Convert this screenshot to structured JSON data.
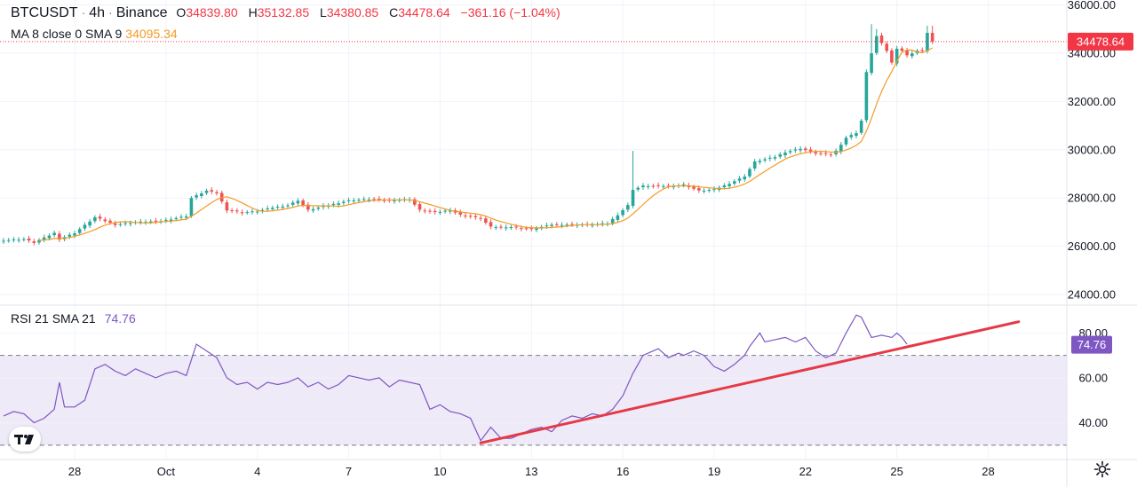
{
  "header": {
    "symbol": "BTCUSDT",
    "interval": "4h",
    "exchange": "Binance",
    "sep": "·",
    "o_label": "O",
    "o_value": "34839.80",
    "h_label": "H",
    "h_value": "35132.85",
    "l_label": "L",
    "l_value": "34380.85",
    "c_label": "C",
    "c_value": "34478.64",
    "change": "−361.16 (−1.04%)"
  },
  "ma_legend": {
    "label": "MA 8 close 0 SMA 9",
    "value": "34095.34"
  },
  "rsi_legend": {
    "label": "RSI 21 SMA 21",
    "value": "74.76"
  },
  "colors": {
    "up": "#26a69a",
    "down": "#ef5350",
    "ma": "#f59a23",
    "rsi": "#7e57c2",
    "trendline": "#e63946",
    "band_fill": "#efeaf8",
    "price_badge": "#f23645",
    "rsi_badge": "#7e57c2"
  },
  "icons": {
    "logo": "tradingview-logo-icon",
    "settings": "gear-icon"
  },
  "chart_data": [
    {
      "type": "candlestick",
      "name": "BTCUSDT price",
      "x_ticks": [
        {
          "label": "28",
          "index": 14
        },
        {
          "label": "Oct",
          "index": 32
        },
        {
          "label": "4",
          "index": 50
        },
        {
          "label": "7",
          "index": 68
        },
        {
          "label": "10",
          "index": 86
        },
        {
          "label": "13",
          "index": 104
        },
        {
          "label": "16",
          "index": 122
        },
        {
          "label": "19",
          "index": 140
        },
        {
          "label": "22",
          "index": 158
        },
        {
          "label": "25",
          "index": 176
        },
        {
          "label": "28",
          "index": 194
        }
      ],
      "y_ticks": [
        24000,
        26000,
        28000,
        30000,
        32000,
        34000,
        36000
      ],
      "y_tick_labels": [
        "24000.00",
        "26000.00",
        "28000.00",
        "30000.00",
        "32000.00",
        "34000.00",
        "36000.00"
      ],
      "ylim": [
        23600,
        36200
      ],
      "last_price": 34478.64,
      "last_price_label": "34478.64",
      "close_path": [
        [
          0,
          26250
        ],
        [
          4,
          26300
        ],
        [
          6,
          26150
        ],
        [
          10,
          26550
        ],
        [
          11,
          26300
        ],
        [
          14,
          26550
        ],
        [
          18,
          27200
        ],
        [
          22,
          26900
        ],
        [
          26,
          27000
        ],
        [
          31,
          27050
        ],
        [
          36,
          27250
        ],
        [
          37,
          28000
        ],
        [
          40,
          28300
        ],
        [
          42,
          28200
        ],
        [
          44,
          27500
        ],
        [
          47,
          27400
        ],
        [
          50,
          27450
        ],
        [
          53,
          27600
        ],
        [
          56,
          27700
        ],
        [
          58,
          27900
        ],
        [
          60,
          27500
        ],
        [
          64,
          27700
        ],
        [
          68,
          27900
        ],
        [
          72,
          27950
        ],
        [
          76,
          27900
        ],
        [
          80,
          27950
        ],
        [
          82,
          27500
        ],
        [
          85,
          27400
        ],
        [
          88,
          27500
        ],
        [
          90,
          27300
        ],
        [
          94,
          27150
        ],
        [
          96,
          26800
        ],
        [
          100,
          26800
        ],
        [
          104,
          26700
        ],
        [
          108,
          26900
        ],
        [
          112,
          26900
        ],
        [
          116,
          26900
        ],
        [
          119,
          26950
        ],
        [
          121,
          27300
        ],
        [
          123,
          27700
        ],
        [
          124,
          28350
        ],
        [
          126,
          28500
        ],
        [
          128,
          28500
        ],
        [
          132,
          28500
        ],
        [
          134,
          28550
        ],
        [
          137,
          28300
        ],
        [
          140,
          28350
        ],
        [
          143,
          28600
        ],
        [
          146,
          28900
        ],
        [
          148,
          29500
        ],
        [
          150,
          29600
        ],
        [
          152,
          29700
        ],
        [
          154,
          29900
        ],
        [
          157,
          30050
        ],
        [
          160,
          29850
        ],
        [
          163,
          29800
        ],
        [
          164,
          29950
        ],
        [
          166,
          30500
        ],
        [
          168,
          30700
        ],
        [
          169,
          31200
        ],
        [
          170,
          33200
        ],
        [
          171,
          34000
        ],
        [
          172,
          34700
        ],
        [
          173,
          34400
        ],
        [
          174,
          34100
        ],
        [
          175,
          33600
        ],
        [
          176,
          34200
        ],
        [
          177,
          34100
        ],
        [
          178,
          33900
        ],
        [
          179,
          34000
        ],
        [
          180,
          34100
        ],
        [
          181,
          34100
        ],
        [
          182,
          34850
        ],
        [
          183,
          34480
        ]
      ],
      "spikes": [
        {
          "index": 124,
          "high": 29950
        },
        {
          "index": 171,
          "high": 35200
        },
        {
          "index": 172,
          "high": 35000
        },
        {
          "index": 182,
          "high": 35133
        }
      ]
    },
    {
      "type": "line",
      "name": "RSI 21",
      "y_ticks": [
        40,
        60,
        80
      ],
      "y_tick_labels": [
        "40.00",
        "60.00",
        "80.00"
      ],
      "ylim": [
        24,
        92
      ],
      "band": [
        30,
        70
      ],
      "last_value": 74.76,
      "last_value_label": "74.76",
      "points": [
        [
          0,
          43
        ],
        [
          2,
          45
        ],
        [
          4,
          44
        ],
        [
          6,
          40
        ],
        [
          8,
          42
        ],
        [
          10,
          46
        ],
        [
          11,
          58
        ],
        [
          12,
          47
        ],
        [
          14,
          47
        ],
        [
          16,
          50
        ],
        [
          18,
          64
        ],
        [
          20,
          66
        ],
        [
          22,
          63
        ],
        [
          24,
          61
        ],
        [
          26,
          64
        ],
        [
          28,
          62
        ],
        [
          30,
          60
        ],
        [
          32,
          62
        ],
        [
          34,
          63
        ],
        [
          36,
          61
        ],
        [
          38,
          75
        ],
        [
          40,
          72
        ],
        [
          42,
          69
        ],
        [
          44,
          60
        ],
        [
          46,
          57
        ],
        [
          48,
          58
        ],
        [
          50,
          55
        ],
        [
          52,
          58
        ],
        [
          54,
          57
        ],
        [
          56,
          58
        ],
        [
          58,
          60
        ],
        [
          60,
          56
        ],
        [
          62,
          58
        ],
        [
          64,
          55
        ],
        [
          66,
          57
        ],
        [
          68,
          61
        ],
        [
          70,
          60
        ],
        [
          72,
          59
        ],
        [
          74,
          60
        ],
        [
          76,
          56
        ],
        [
          78,
          59
        ],
        [
          80,
          58
        ],
        [
          82,
          57
        ],
        [
          84,
          46
        ],
        [
          86,
          48
        ],
        [
          88,
          45
        ],
        [
          90,
          44
        ],
        [
          92,
          42
        ],
        [
          94,
          32
        ],
        [
          96,
          38
        ],
        [
          98,
          33
        ],
        [
          100,
          33
        ],
        [
          102,
          35
        ],
        [
          104,
          37
        ],
        [
          106,
          38
        ],
        [
          108,
          36
        ],
        [
          110,
          41
        ],
        [
          112,
          43
        ],
        [
          114,
          42
        ],
        [
          116,
          44
        ],
        [
          118,
          43
        ],
        [
          120,
          46
        ],
        [
          122,
          52
        ],
        [
          124,
          62
        ],
        [
          126,
          70
        ],
        [
          128,
          72
        ],
        [
          129,
          73
        ],
        [
          131,
          69
        ],
        [
          133,
          71
        ],
        [
          134,
          70
        ],
        [
          136,
          72
        ],
        [
          138,
          70
        ],
        [
          140,
          65
        ],
        [
          142,
          63
        ],
        [
          144,
          66
        ],
        [
          146,
          70
        ],
        [
          147,
          74
        ],
        [
          149,
          80
        ],
        [
          150,
          76
        ],
        [
          152,
          77
        ],
        [
          154,
          78
        ],
        [
          156,
          76
        ],
        [
          158,
          78
        ],
        [
          160,
          72
        ],
        [
          162,
          69
        ],
        [
          164,
          71
        ],
        [
          166,
          80
        ],
        [
          168,
          88
        ],
        [
          169,
          87
        ],
        [
          171,
          78
        ],
        [
          173,
          79
        ],
        [
          175,
          78
        ],
        [
          176,
          80
        ],
        [
          177,
          78
        ],
        [
          178,
          75
        ]
      ],
      "trendline": [
        [
          94,
          31
        ],
        [
          200,
          85
        ]
      ]
    }
  ]
}
